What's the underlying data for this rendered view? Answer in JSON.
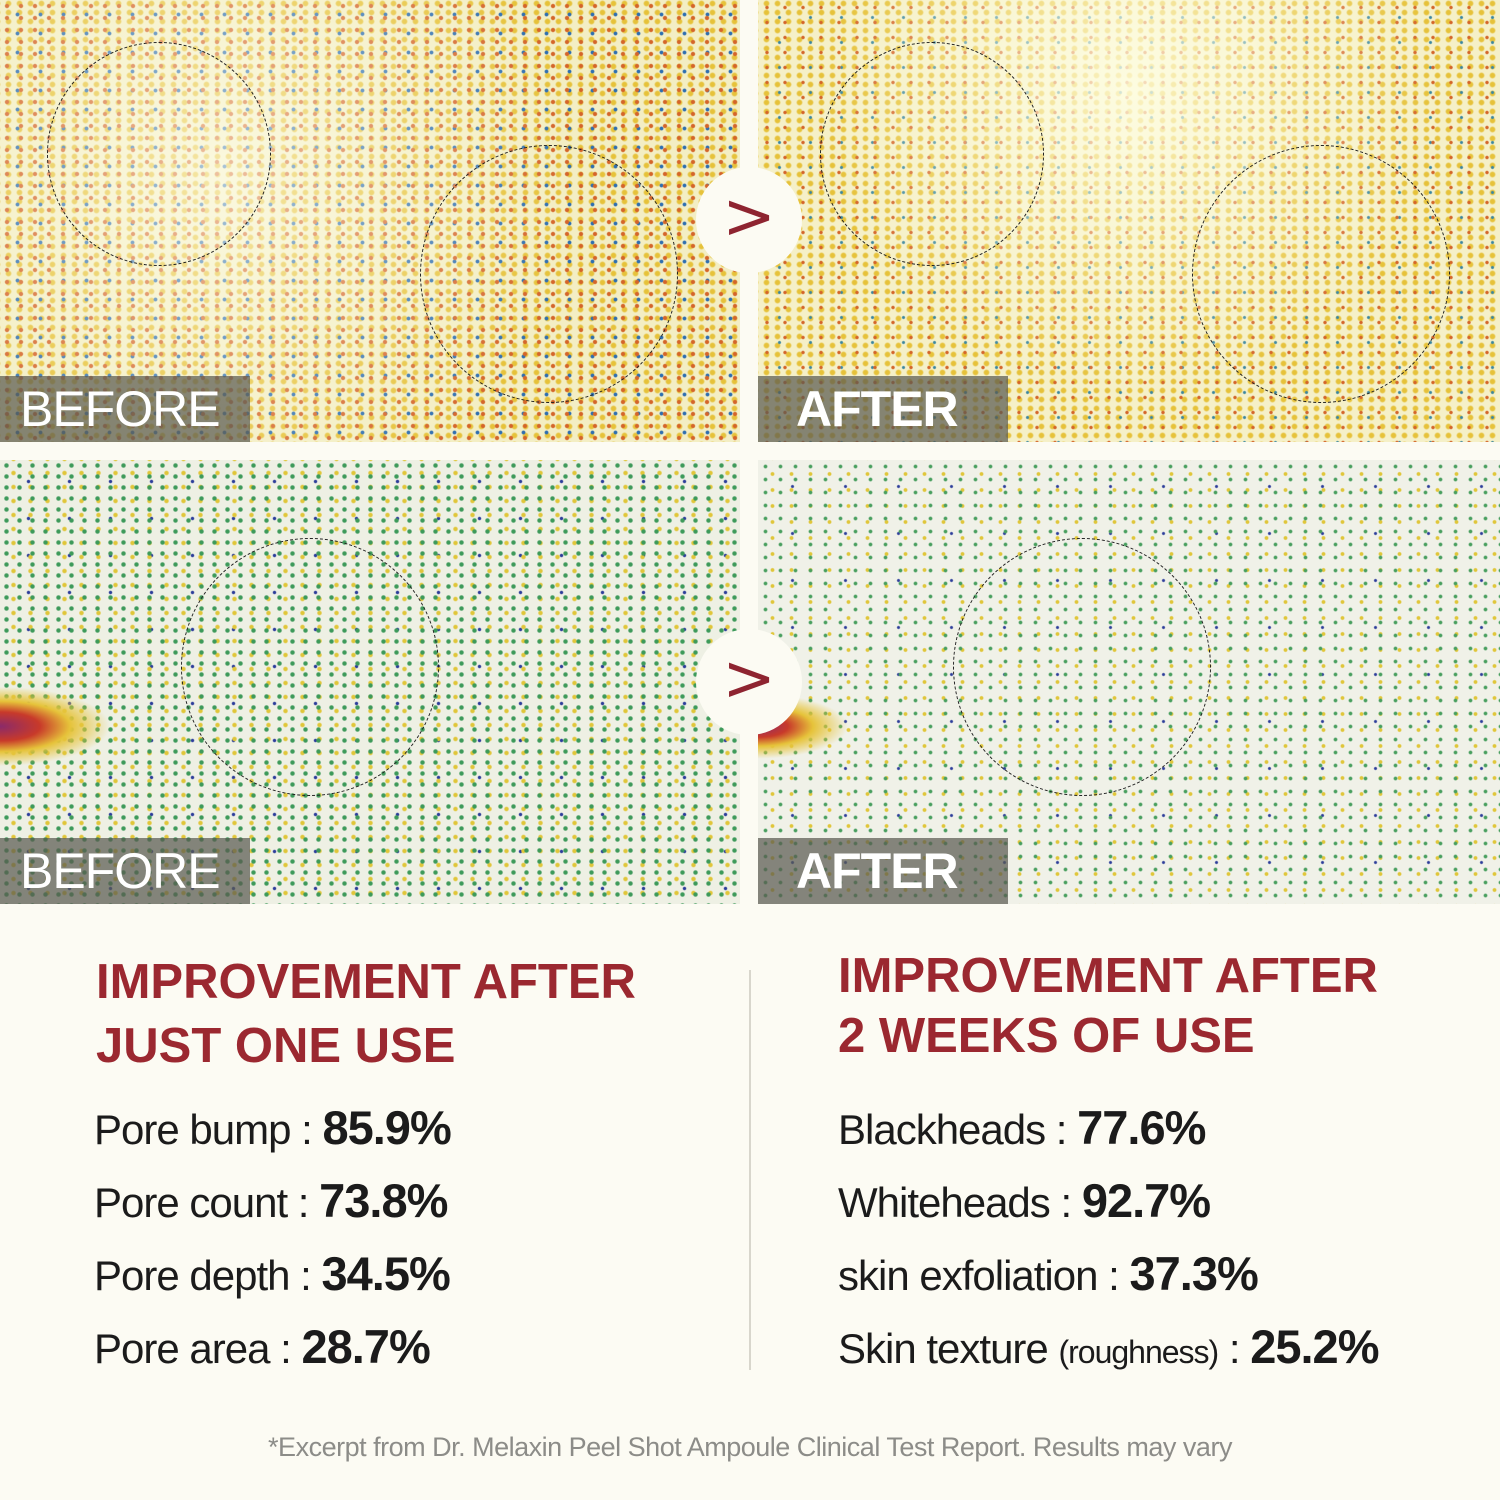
{
  "panels": {
    "top_left": {
      "label": "BEFORE"
    },
    "top_right": {
      "label": "AFTER"
    },
    "bottom_left": {
      "label": "BEFORE"
    },
    "bottom_right": {
      "label": "AFTER"
    }
  },
  "arrow_glyph": ">",
  "left_column": {
    "heading_line1": "IMPROVEMENT AFTER",
    "heading_line2": "JUST ONE USE",
    "stats": [
      {
        "label": "Pore bump : ",
        "value": "85.9%"
      },
      {
        "label": "Pore count : ",
        "value": "73.8%"
      },
      {
        "label": "Pore depth : ",
        "value": "34.5%"
      },
      {
        "label": "Pore area : ",
        "value": "28.7%"
      }
    ]
  },
  "right_column": {
    "heading_line1": "IMPROVEMENT AFTER",
    "heading_line2": "2 WEEKS OF USE",
    "stats": [
      {
        "label": "Blackheads : ",
        "value": "77.6%"
      },
      {
        "label": "Whiteheads : ",
        "value": "92.7%"
      },
      {
        "label": "skin exfoliation : ",
        "value": "37.3%"
      },
      {
        "label": "Skin texture ",
        "note": "(roughness)",
        "sep": " : ",
        "value": "25.2%"
      }
    ]
  },
  "footnote": "*Excerpt from Dr. Melaxin Peel Shot Ampoule Clinical Test Report. Results may vary",
  "colors": {
    "heading": "#9b2830",
    "background": "#fcfbf3",
    "arrow": "#8e2430"
  }
}
